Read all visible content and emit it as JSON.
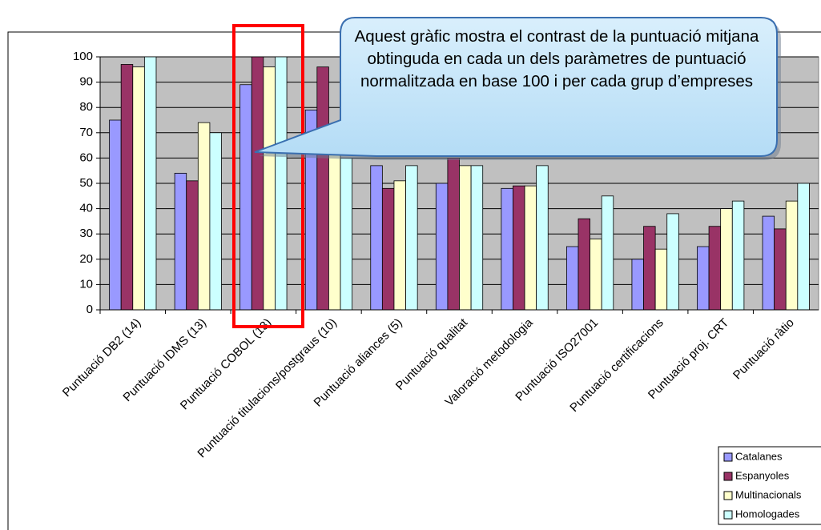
{
  "chart_data": {
    "type": "bar",
    "categories": [
      "Puntuació DB2 (14)",
      "Puntuació IDMS (13)",
      "Puntuació COBOL (13)",
      "Puntuació titulacions/postgraus (10)",
      "Puntuació aliances (5)",
      "Puntuació qualitat",
      "Valoració metodologia",
      "Puntuació ISO27001",
      "Puntuació certificacions",
      "Puntuació proj. CRT",
      "Puntuació ràtio"
    ],
    "series": [
      {
        "name": "Catalanes",
        "color": "#9999ff",
        "values": [
          75,
          54,
          89,
          79,
          57,
          50,
          48,
          25,
          20,
          25,
          37
        ]
      },
      {
        "name": "Espanyoles",
        "color": "#993366",
        "values": [
          97,
          51,
          100,
          96,
          48,
          60,
          49,
          36,
          33,
          33,
          32
        ]
      },
      {
        "name": "Multinacionals",
        "color": "#ffffcc",
        "values": [
          96,
          74,
          96,
          65,
          51,
          57,
          49,
          28,
          24,
          40,
          43
        ]
      },
      {
        "name": "Homologades",
        "color": "#ccffff",
        "values": [
          100,
          70,
          100,
          60,
          57,
          57,
          57,
          45,
          38,
          43,
          50
        ]
      }
    ],
    "ylim": [
      0,
      100
    ],
    "yticks": [
      0,
      10,
      20,
      30,
      40,
      50,
      60,
      70,
      80,
      90,
      100
    ],
    "grid": true,
    "legend": "bottom-right",
    "annotation": "Aquest gràfic mostra el contrast de la puntuació mitjana obtinguda en cada un dels paràmetres de puntuació normalitzada en base 100 i per cada grup d’empreses"
  }
}
